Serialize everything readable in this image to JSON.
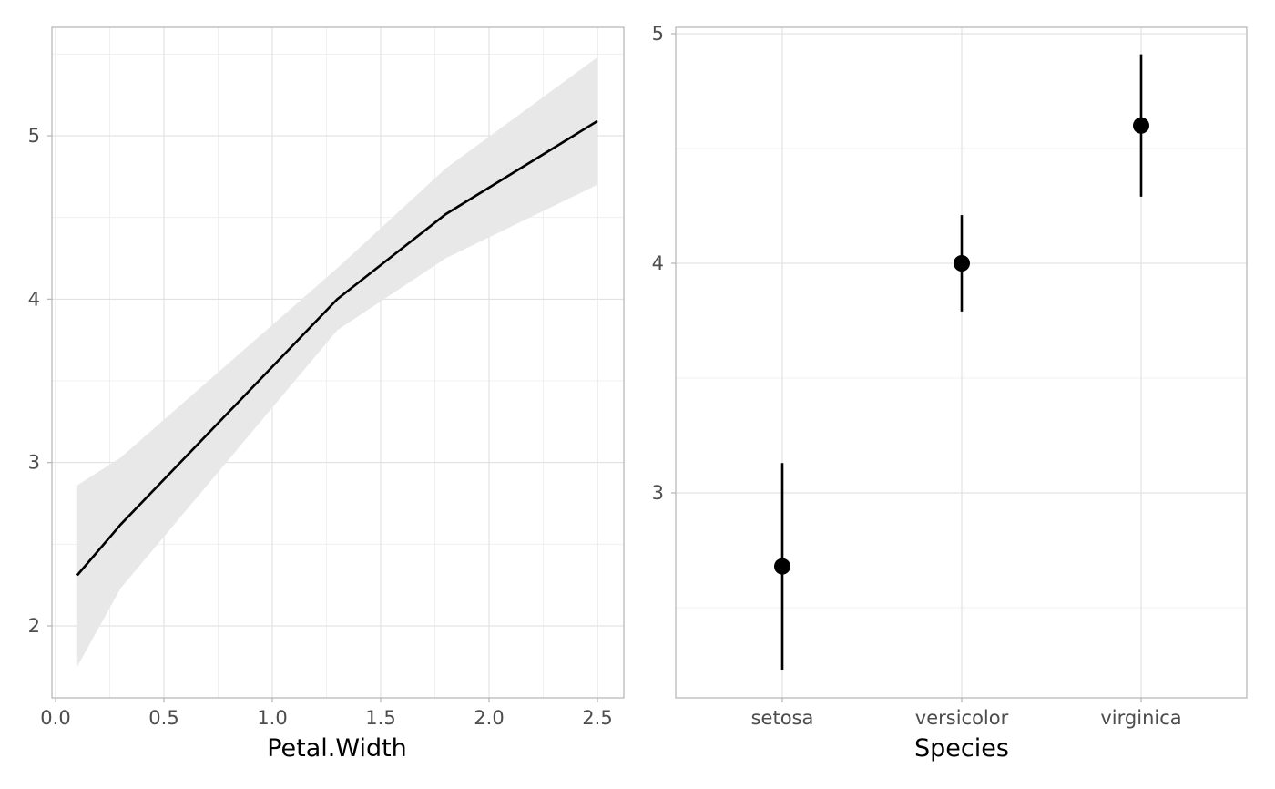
{
  "chart_data": [
    {
      "type": "line",
      "xlabel": "Petal.Width",
      "ylabel": "",
      "xlim": [
        0,
        2.6
      ],
      "ylim": [
        1.75,
        5.5
      ],
      "x_ticks": [
        0.0,
        0.5,
        1.0,
        1.5,
        2.0,
        2.5
      ],
      "x_tick_labels": [
        "0.0",
        "0.5",
        "1.0",
        "1.5",
        "2.0",
        "2.5"
      ],
      "y_ticks": [
        2,
        3,
        4,
        5
      ],
      "y_tick_labels": [
        "2",
        "3",
        "4",
        "5"
      ],
      "grid": true,
      "series": [
        {
          "x": [
            0.1,
            0.3,
            1.3,
            1.8,
            2.5
          ],
          "y": [
            2.31,
            2.62,
            4.0,
            4.52,
            5.09
          ],
          "lower": [
            1.75,
            2.23,
            3.81,
            4.25,
            4.7
          ],
          "upper": [
            2.86,
            3.03,
            4.19,
            4.8,
            5.48
          ]
        }
      ]
    },
    {
      "type": "scatter",
      "xlabel": "Species",
      "ylabel": "",
      "categories": [
        "setosa",
        "versicolor",
        "virginica"
      ],
      "ylim": [
        2.1,
        5.0
      ],
      "y_ticks": [
        3,
        4,
        5
      ],
      "y_tick_labels": [
        "3",
        "4",
        "5"
      ],
      "grid": true,
      "series": [
        {
          "values": [
            2.68,
            4.0,
            4.6
          ],
          "lower": [
            2.23,
            3.79,
            4.29
          ],
          "upper": [
            3.13,
            4.21,
            4.91
          ]
        }
      ]
    }
  ]
}
